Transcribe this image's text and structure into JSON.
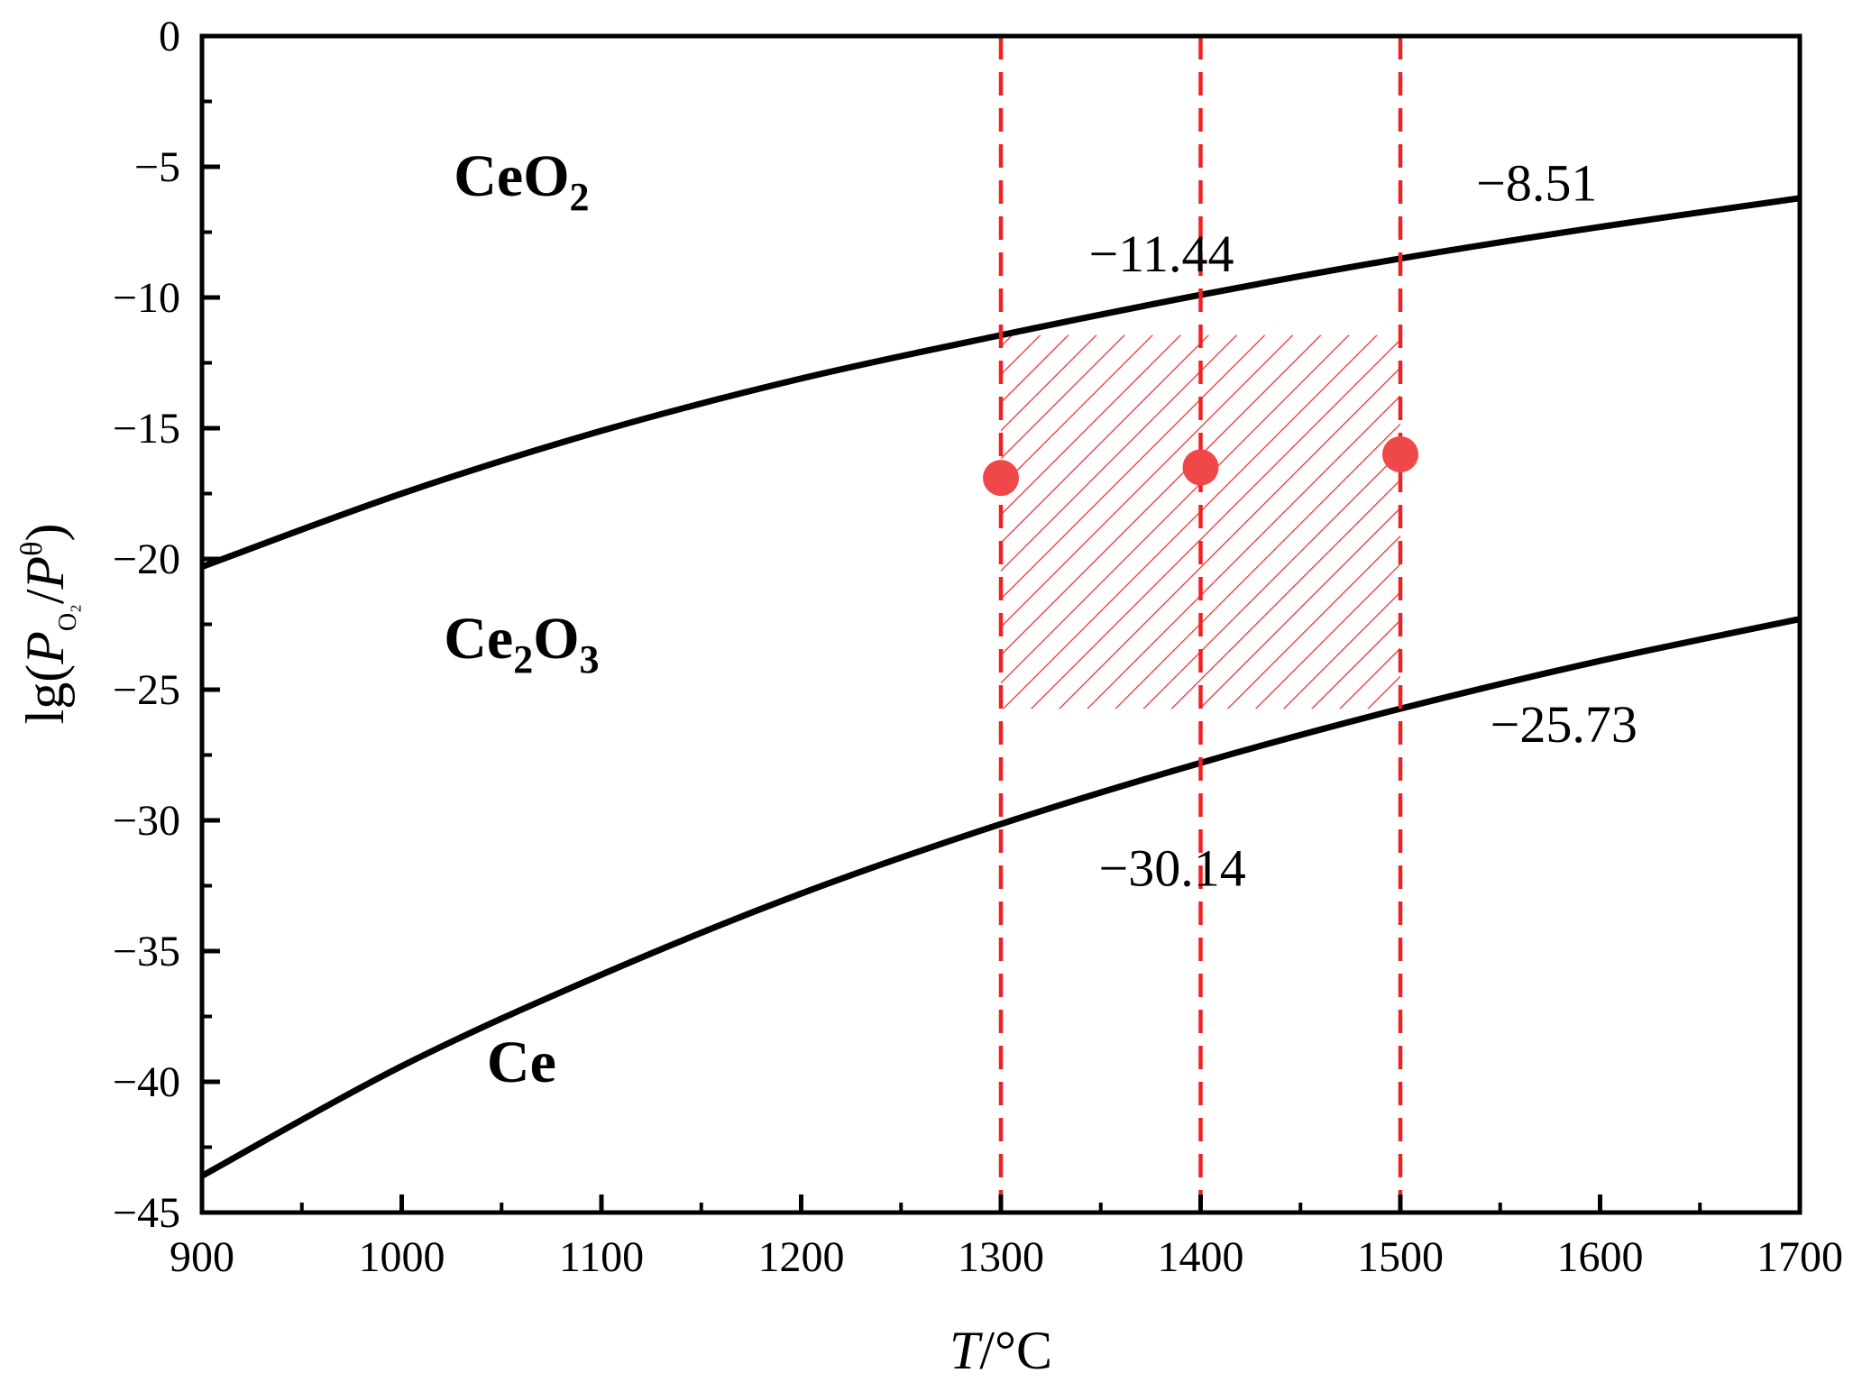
{
  "chart_data": {
    "type": "line",
    "title": "",
    "xlabel": {
      "italic": "T",
      "rest": "/°C"
    },
    "ylabel": {
      "prefix": "lg(",
      "p1": "P",
      "p1_sub": "O₂",
      "slash": "/",
      "p2": "P",
      "p2_sup": "θ",
      "suffix": ")"
    },
    "xlim": [
      900,
      1700
    ],
    "ylim": [
      -45,
      0
    ],
    "xticks": [
      900,
      1000,
      1100,
      1200,
      1300,
      1400,
      1500,
      1600,
      1700
    ],
    "xtick_labels": [
      "900",
      "1000",
      "1100",
      "1200",
      "1300",
      "1400",
      "1500",
      "1600",
      "1700"
    ],
    "yticks": [
      0,
      -5,
      -10,
      -15,
      -20,
      -25,
      -30,
      -35,
      -40,
      -45
    ],
    "ytick_labels": [
      "0",
      "−5",
      "−10",
      "−15",
      "−20",
      "−25",
      "−30",
      "−35",
      "−40",
      "−45"
    ],
    "grid": false,
    "series": [
      {
        "name": "CeO2/Ce2O3 boundary",
        "color": "#000000",
        "x": [
          900,
          1000,
          1100,
          1200,
          1300,
          1400,
          1500,
          1600,
          1700
        ],
        "y": [
          -20.3,
          -17.5,
          -15.1,
          -13.1,
          -11.44,
          -9.9,
          -8.51,
          -7.3,
          -6.2
        ]
      },
      {
        "name": "Ce2O3/Ce boundary",
        "color": "#000000",
        "x": [
          900,
          1000,
          1100,
          1200,
          1300,
          1400,
          1500,
          1600,
          1700
        ],
        "y": [
          -43.6,
          -39.4,
          -35.9,
          -32.8,
          -30.14,
          -27.8,
          -25.73,
          -23.9,
          -22.3
        ]
      }
    ],
    "vertical_lines": {
      "color": "#ee2222",
      "style": "dashed",
      "x": [
        1300,
        1400,
        1500
      ]
    },
    "hatched_region": {
      "color": "#ee3333",
      "x_range": [
        1300,
        1500
      ],
      "y_range": [
        -25.73,
        -11.44
      ]
    },
    "points": {
      "color": "#f04848",
      "x": [
        1300,
        1400,
        1500
      ],
      "y": [
        -16.9,
        -16.5,
        -16.0
      ]
    },
    "regions": [
      {
        "main": "CeO",
        "sub": "2",
        "main2": "",
        "sub2": "",
        "x": 1060,
        "y": -6.1
      },
      {
        "main": "Ce",
        "sub": "2",
        "main2": "O",
        "sub2": "3",
        "x": 1060,
        "y": -23.8
      },
      {
        "main": "Ce",
        "sub": "",
        "main2": "",
        "sub2": "",
        "x": 1060,
        "y": -40.0
      }
    ],
    "annotations": [
      {
        "text": "−11.44",
        "x": 1344,
        "y": -9.0
      },
      {
        "text": "−8.51",
        "x": 1538,
        "y": -6.3
      },
      {
        "text": "−30.14",
        "x": 1349,
        "y": -32.5
      },
      {
        "text": "−25.73",
        "x": 1545,
        "y": -27.0
      }
    ]
  }
}
